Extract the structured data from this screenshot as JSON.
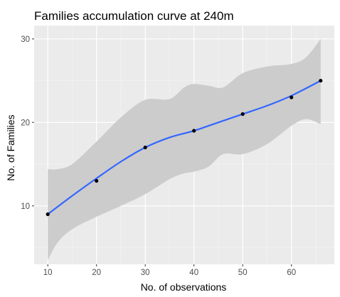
{
  "chart_data": {
    "type": "line",
    "title": "Families accumulation curve at 240m",
    "xlabel": "No. of observations",
    "ylabel": "No. of Families",
    "xlim": [
      7.2,
      68.8
    ],
    "ylim": [
      3.0,
      31.6
    ],
    "x_ticks": [
      10,
      20,
      30,
      40,
      50,
      60
    ],
    "y_ticks": [
      10,
      20,
      30
    ],
    "grid": true,
    "legend": "none",
    "points": {
      "x": [
        10,
        20,
        30,
        40,
        50,
        60,
        66
      ],
      "y": [
        9,
        13,
        17,
        19,
        21,
        23,
        25
      ]
    },
    "smooth": {
      "x": [
        10,
        15,
        20,
        25,
        30,
        35,
        40,
        45,
        50,
        55,
        60,
        66
      ],
      "y": [
        9.0,
        11.2,
        13.3,
        15.3,
        17.0,
        18.2,
        19.0,
        20.0,
        21.0,
        22.0,
        23.2,
        25.0
      ]
    },
    "confidence_band": {
      "x": [
        10,
        12,
        15,
        20,
        25,
        30,
        35,
        38,
        40,
        43,
        46,
        50,
        55,
        60,
        63,
        66
      ],
      "lower": [
        3.5,
        5.6,
        7.2,
        8.7,
        10.0,
        11.4,
        13.2,
        13.9,
        14.1,
        14.7,
        16.2,
        16.2,
        17.4,
        19.6,
        20.4,
        19.8
      ],
      "upper": [
        14.4,
        14.4,
        15.0,
        17.7,
        20.6,
        22.7,
        22.8,
        24.2,
        24.6,
        24.4,
        24.2,
        25.9,
        26.7,
        27.0,
        27.8,
        30.0
      ]
    },
    "colors": {
      "panel": "#ebebeb",
      "grid_major": "#ffffff",
      "grid_minor": "#f5f5f5",
      "band": "#cccccc",
      "line": "#3366ff",
      "point": "#000000",
      "tick": "#4d4d4d"
    }
  }
}
